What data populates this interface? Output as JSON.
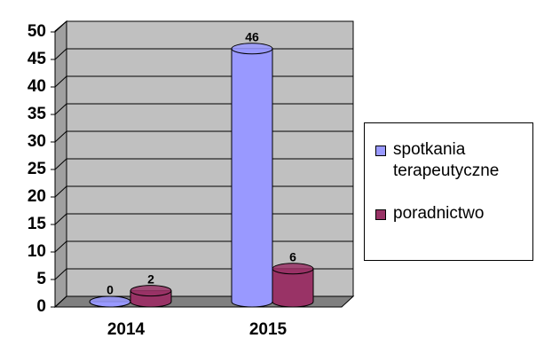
{
  "chart_data": {
    "type": "bar3d",
    "categories": [
      "2014",
      "2015"
    ],
    "series": [
      {
        "name": "spotkania terapeutyczne",
        "color": "#9999ff",
        "values": [
          0,
          46
        ]
      },
      {
        "name": "poradnictwo",
        "color": "#993366",
        "values": [
          2,
          6
        ]
      }
    ],
    "ylim": [
      0,
      50
    ],
    "yticks": [
      0,
      5,
      10,
      15,
      20,
      25,
      30,
      35,
      40,
      45,
      50
    ],
    "grid": true,
    "legend": "right"
  }
}
